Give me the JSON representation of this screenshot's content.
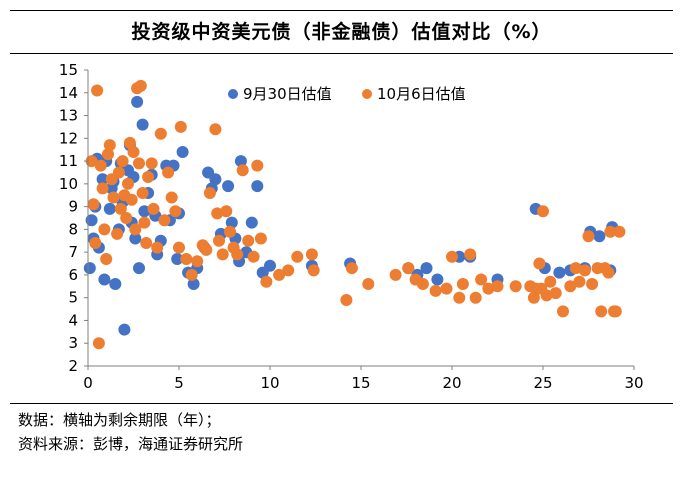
{
  "header": {
    "title": "投资级中资美元债（非金融债）估值对比（%）"
  },
  "footer": {
    "note": "数据：横轴为剩余期限（年）；",
    "source": "资料来源：彭博，海通证券研究所"
  },
  "chart_data": {
    "type": "scatter",
    "title": "投资级中资美元债（非金融债）估值对比（%）",
    "xlabel": "",
    "ylabel": "",
    "xlim": [
      0,
      30
    ],
    "ylim": [
      2,
      15
    ],
    "x_ticks": [
      0,
      5,
      10,
      15,
      20,
      25,
      30
    ],
    "y_ticks": [
      2,
      3,
      4,
      5,
      6,
      7,
      8,
      9,
      10,
      11,
      12,
      13,
      14,
      15
    ],
    "grid": false,
    "legend_position": "top",
    "series": [
      {
        "name": "9月30日估值",
        "color": "#4472C4",
        "points": [
          [
            0.1,
            6.3
          ],
          [
            0.2,
            8.4
          ],
          [
            0.3,
            7.6
          ],
          [
            0.4,
            9.0
          ],
          [
            0.5,
            11.1
          ],
          [
            0.6,
            7.2
          ],
          [
            0.8,
            10.2
          ],
          [
            0.9,
            5.8
          ],
          [
            1.0,
            11.0
          ],
          [
            1.2,
            8.9
          ],
          [
            1.3,
            9.8
          ],
          [
            1.4,
            10.1
          ],
          [
            1.5,
            5.6
          ],
          [
            1.7,
            8.0
          ],
          [
            1.8,
            10.9
          ],
          [
            1.9,
            9.2
          ],
          [
            2.0,
            3.6
          ],
          [
            2.2,
            10.6
          ],
          [
            2.3,
            11.7
          ],
          [
            2.4,
            8.3
          ],
          [
            2.5,
            10.3
          ],
          [
            2.6,
            7.6
          ],
          [
            2.7,
            13.6
          ],
          [
            2.8,
            6.3
          ],
          [
            3.0,
            12.6
          ],
          [
            3.1,
            8.8
          ],
          [
            3.3,
            9.6
          ],
          [
            3.5,
            10.4
          ],
          [
            3.7,
            8.6
          ],
          [
            3.8,
            6.9
          ],
          [
            4.0,
            7.5
          ],
          [
            4.3,
            10.8
          ],
          [
            4.5,
            8.4
          ],
          [
            4.7,
            10.8
          ],
          [
            4.9,
            6.7
          ],
          [
            5.0,
            8.7
          ],
          [
            5.2,
            11.4
          ],
          [
            5.5,
            6.1
          ],
          [
            5.8,
            5.6
          ],
          [
            6.0,
            6.3
          ],
          [
            6.4,
            7.2
          ],
          [
            6.6,
            10.5
          ],
          [
            6.8,
            9.8
          ],
          [
            7.0,
            10.2
          ],
          [
            7.3,
            7.8
          ],
          [
            7.7,
            9.9
          ],
          [
            7.9,
            8.3
          ],
          [
            8.1,
            7.6
          ],
          [
            8.3,
            6.6
          ],
          [
            8.4,
            11.0
          ],
          [
            8.7,
            7.0
          ],
          [
            9.0,
            8.3
          ],
          [
            9.3,
            9.9
          ],
          [
            9.6,
            6.1
          ],
          [
            10.0,
            6.4
          ],
          [
            12.3,
            6.4
          ],
          [
            14.4,
            6.5
          ],
          [
            17.6,
            6.3
          ],
          [
            18.1,
            6.0
          ],
          [
            18.6,
            6.3
          ],
          [
            19.2,
            5.8
          ],
          [
            20.4,
            6.8
          ],
          [
            21.0,
            6.8
          ],
          [
            22.5,
            5.8
          ],
          [
            24.6,
            8.9
          ],
          [
            25.1,
            6.3
          ],
          [
            25.9,
            6.1
          ],
          [
            26.5,
            6.2
          ],
          [
            27.3,
            6.3
          ],
          [
            27.6,
            7.9
          ],
          [
            28.1,
            7.7
          ],
          [
            28.7,
            6.2
          ],
          [
            28.8,
            8.1
          ]
        ]
      },
      {
        "name": "10月6日估值",
        "color": "#ED7D31",
        "points": [
          [
            0.2,
            11.0
          ],
          [
            0.3,
            9.1
          ],
          [
            0.4,
            7.4
          ],
          [
            0.5,
            14.1
          ],
          [
            0.6,
            3.0
          ],
          [
            0.7,
            10.8
          ],
          [
            0.8,
            9.8
          ],
          [
            0.9,
            8.0
          ],
          [
            1.0,
            6.7
          ],
          [
            1.1,
            11.3
          ],
          [
            1.2,
            11.7
          ],
          [
            1.3,
            10.2
          ],
          [
            1.4,
            9.4
          ],
          [
            1.6,
            7.8
          ],
          [
            1.7,
            10.5
          ],
          [
            1.8,
            8.9
          ],
          [
            1.9,
            11.0
          ],
          [
            2.0,
            9.5
          ],
          [
            2.1,
            8.5
          ],
          [
            2.2,
            10.0
          ],
          [
            2.3,
            11.8
          ],
          [
            2.4,
            9.3
          ],
          [
            2.5,
            11.4
          ],
          [
            2.6,
            8.0
          ],
          [
            2.7,
            14.2
          ],
          [
            2.8,
            10.9
          ],
          [
            2.9,
            14.3
          ],
          [
            3.0,
            9.6
          ],
          [
            3.1,
            8.3
          ],
          [
            3.2,
            7.4
          ],
          [
            3.3,
            10.3
          ],
          [
            3.5,
            10.9
          ],
          [
            3.6,
            8.9
          ],
          [
            3.8,
            7.2
          ],
          [
            4.0,
            12.2
          ],
          [
            4.2,
            8.4
          ],
          [
            4.4,
            10.5
          ],
          [
            4.6,
            9.4
          ],
          [
            4.8,
            8.8
          ],
          [
            5.0,
            7.2
          ],
          [
            5.1,
            12.5
          ],
          [
            5.4,
            6.7
          ],
          [
            5.7,
            6.0
          ],
          [
            6.0,
            6.6
          ],
          [
            6.3,
            7.3
          ],
          [
            6.5,
            7.1
          ],
          [
            6.7,
            9.6
          ],
          [
            7.0,
            12.4
          ],
          [
            7.1,
            8.7
          ],
          [
            7.2,
            7.5
          ],
          [
            7.4,
            6.9
          ],
          [
            7.6,
            8.8
          ],
          [
            7.8,
            7.9
          ],
          [
            8.0,
            7.2
          ],
          [
            8.2,
            6.9
          ],
          [
            8.5,
            10.6
          ],
          [
            8.8,
            7.5
          ],
          [
            9.1,
            6.8
          ],
          [
            9.3,
            10.8
          ],
          [
            9.5,
            7.6
          ],
          [
            9.8,
            5.7
          ],
          [
            10.5,
            6.0
          ],
          [
            11.0,
            6.2
          ],
          [
            11.5,
            6.8
          ],
          [
            12.3,
            6.9
          ],
          [
            12.4,
            6.2
          ],
          [
            14.2,
            4.9
          ],
          [
            14.5,
            6.3
          ],
          [
            15.4,
            5.6
          ],
          [
            16.9,
            6.0
          ],
          [
            17.6,
            6.3
          ],
          [
            18.0,
            5.8
          ],
          [
            18.4,
            5.6
          ],
          [
            19.1,
            5.3
          ],
          [
            19.7,
            5.4
          ],
          [
            20.0,
            6.8
          ],
          [
            20.4,
            5.0
          ],
          [
            20.6,
            5.6
          ],
          [
            21.0,
            6.9
          ],
          [
            21.3,
            5.0
          ],
          [
            21.6,
            5.8
          ],
          [
            22.0,
            5.4
          ],
          [
            22.5,
            5.5
          ],
          [
            23.5,
            5.5
          ],
          [
            24.3,
            5.5
          ],
          [
            24.5,
            5.0
          ],
          [
            24.6,
            5.4
          ],
          [
            24.8,
            6.5
          ],
          [
            24.9,
            5.4
          ],
          [
            25.0,
            8.8
          ],
          [
            25.2,
            5.1
          ],
          [
            25.4,
            5.7
          ],
          [
            25.7,
            5.2
          ],
          [
            26.1,
            4.4
          ],
          [
            26.5,
            5.5
          ],
          [
            26.8,
            6.3
          ],
          [
            27.0,
            5.7
          ],
          [
            27.3,
            6.2
          ],
          [
            27.5,
            7.7
          ],
          [
            27.7,
            5.6
          ],
          [
            28.0,
            6.3
          ],
          [
            28.2,
            4.4
          ],
          [
            28.4,
            6.3
          ],
          [
            28.6,
            6.1
          ],
          [
            28.9,
            4.4
          ],
          [
            28.7,
            7.9
          ],
          [
            29.0,
            4.4
          ],
          [
            29.2,
            7.9
          ]
        ]
      }
    ]
  }
}
